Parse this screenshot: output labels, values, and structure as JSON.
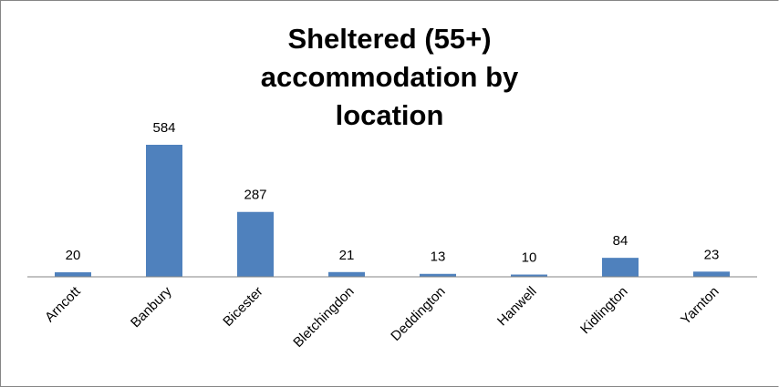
{
  "chart_data": {
    "type": "bar",
    "title": "Sheltered (55+) accommodation by location",
    "categories": [
      "Arncott",
      "Banbury",
      "Bicester",
      "Bletchingdon",
      "Deddington",
      "Hanwell",
      "Kidlington",
      "Yarnton"
    ],
    "values": [
      20,
      584,
      287,
      21,
      13,
      10,
      84,
      23
    ],
    "color": "#4f81bd"
  }
}
